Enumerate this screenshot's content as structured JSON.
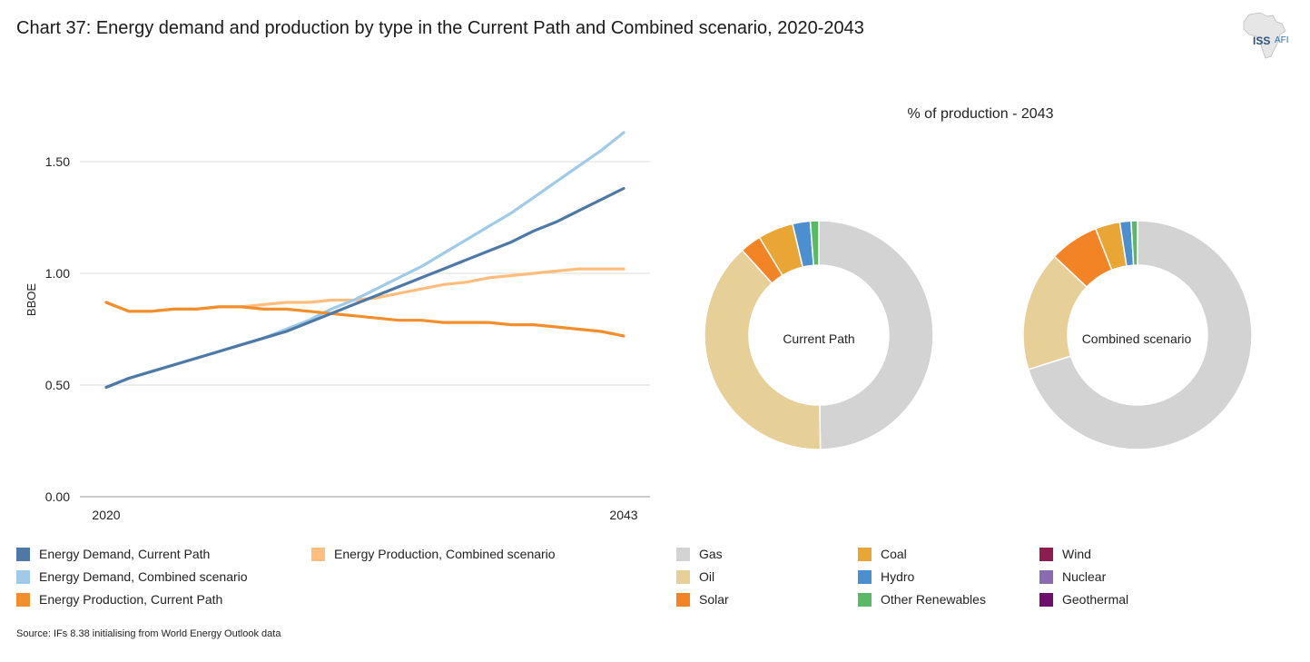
{
  "title": "Chart 37: Energy demand and production by type in the Current Path and Combined scenario, 2020-2043",
  "logo": {
    "iss": "ISS",
    "afi": "AFI"
  },
  "source": "Source: IFs 8.38 initialising from World Energy Outlook data",
  "colors": {
    "demand_current": "#4e79a7",
    "demand_combined": "#a0cbe8",
    "prod_current": "#f28e2b",
    "prod_combined": "#ffbe7d",
    "gas": "#d3d3d3",
    "oil": "#e6d098",
    "solar": "#f28426",
    "coal": "#e9a635",
    "hydro": "#4b8fd1",
    "other_renewables": "#59b964",
    "wind": "#8c1d4e",
    "nuclear": "#8a6baf",
    "geothermal": "#6d0f6d"
  },
  "chart_data": [
    {
      "type": "line",
      "title": "",
      "xlabel": "",
      "ylabel": "BBOE",
      "x": [
        2020,
        2021,
        2022,
        2023,
        2024,
        2025,
        2026,
        2027,
        2028,
        2029,
        2030,
        2031,
        2032,
        2033,
        2034,
        2035,
        2036,
        2037,
        2038,
        2039,
        2040,
        2041,
        2042,
        2043
      ],
      "x_tick_labels": [
        "2020",
        "2043"
      ],
      "y_tick_labels": [
        "0.00",
        "0.50",
        "1.00",
        "1.50"
      ],
      "ylim": [
        0,
        1.75
      ],
      "series": [
        {
          "name": "Energy Demand, Current Path",
          "color_key": "demand_current",
          "values": [
            0.49,
            0.53,
            0.56,
            0.59,
            0.62,
            0.65,
            0.68,
            0.71,
            0.74,
            0.78,
            0.82,
            0.86,
            0.9,
            0.94,
            0.98,
            1.02,
            1.06,
            1.1,
            1.14,
            1.19,
            1.23,
            1.28,
            1.33,
            1.38
          ]
        },
        {
          "name": "Energy Demand, Combined scenario",
          "color_key": "demand_combined",
          "values": [
            0.49,
            0.53,
            0.56,
            0.59,
            0.62,
            0.65,
            0.68,
            0.71,
            0.75,
            0.79,
            0.84,
            0.88,
            0.93,
            0.98,
            1.03,
            1.09,
            1.15,
            1.21,
            1.27,
            1.34,
            1.41,
            1.48,
            1.55,
            1.63
          ]
        },
        {
          "name": "Energy Production, Current Path",
          "color_key": "prod_current",
          "values": [
            0.87,
            0.83,
            0.83,
            0.84,
            0.84,
            0.85,
            0.85,
            0.84,
            0.84,
            0.83,
            0.82,
            0.81,
            0.8,
            0.79,
            0.79,
            0.78,
            0.78,
            0.78,
            0.77,
            0.77,
            0.76,
            0.75,
            0.74,
            0.72
          ]
        },
        {
          "name": "Energy Production, Combined scenario",
          "color_key": "prod_combined",
          "values": [
            0.87,
            0.83,
            0.83,
            0.84,
            0.84,
            0.85,
            0.85,
            0.86,
            0.87,
            0.87,
            0.88,
            0.88,
            0.89,
            0.91,
            0.93,
            0.95,
            0.96,
            0.98,
            0.99,
            1.0,
            1.01,
            1.02,
            1.02,
            1.02
          ]
        }
      ]
    },
    {
      "type": "pie",
      "title": "% of production - 2043",
      "label": "Current Path",
      "slices": [
        {
          "name": "Gas",
          "value": 49.8,
          "color_key": "gas"
        },
        {
          "name": "Oil",
          "value": 38.5,
          "color_key": "oil"
        },
        {
          "name": "Solar",
          "value": 3.0,
          "color_key": "solar"
        },
        {
          "name": "Coal",
          "value": 5.0,
          "color_key": "coal"
        },
        {
          "name": "Hydro",
          "value": 2.5,
          "color_key": "hydro"
        },
        {
          "name": "Other Renewables",
          "value": 1.2,
          "color_key": "other_renewables"
        }
      ]
    },
    {
      "type": "pie",
      "title": "% of production - 2043",
      "label": "Combined scenario",
      "slices": [
        {
          "name": "Gas",
          "value": 70.5,
          "color_key": "gas"
        },
        {
          "name": "Oil",
          "value": 17.0,
          "color_key": "oil"
        },
        {
          "name": "Solar",
          "value": 7.0,
          "color_key": "solar"
        },
        {
          "name": "Coal",
          "value": 3.5,
          "color_key": "coal"
        },
        {
          "name": "Hydro",
          "value": 1.6,
          "color_key": "hydro"
        },
        {
          "name": "Other Renewables",
          "value": 0.9,
          "color_key": "other_renewables"
        }
      ]
    }
  ],
  "legend_lines": [
    {
      "label": "Energy Demand, Current Path",
      "color_key": "demand_current"
    },
    {
      "label": "Energy Demand, Combined scenario",
      "color_key": "demand_combined"
    },
    {
      "label": "Energy Production, Current Path",
      "color_key": "prod_current"
    },
    {
      "label": "Energy Production, Combined scenario",
      "color_key": "prod_combined"
    }
  ],
  "legend_types": [
    {
      "label": "Gas",
      "color_key": "gas"
    },
    {
      "label": "Oil",
      "color_key": "oil"
    },
    {
      "label": "Solar",
      "color_key": "solar"
    },
    {
      "label": "Coal",
      "color_key": "coal"
    },
    {
      "label": "Hydro",
      "color_key": "hydro"
    },
    {
      "label": "Other Renewables",
      "color_key": "other_renewables"
    },
    {
      "label": "Wind",
      "color_key": "wind"
    },
    {
      "label": "Nuclear",
      "color_key": "nuclear"
    },
    {
      "label": "Geothermal",
      "color_key": "geothermal"
    }
  ]
}
